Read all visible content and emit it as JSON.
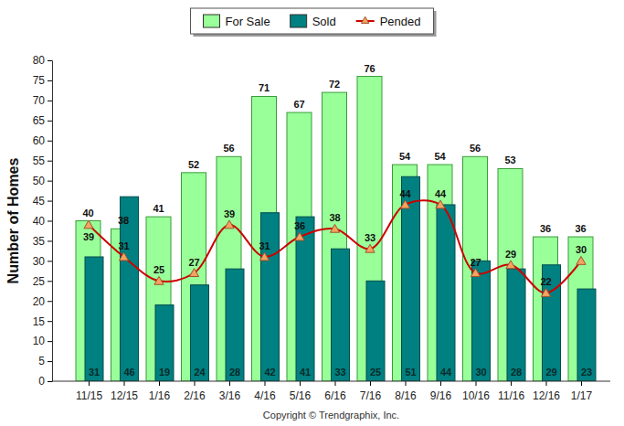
{
  "chart_data": {
    "type": "bar",
    "ylabel": "Number of Homes",
    "annotations": [
      "Copyright © Trendgraphix, Inc."
    ],
    "categories": [
      "11/15",
      "12/15",
      "1/16",
      "2/16",
      "3/16",
      "4/16",
      "5/16",
      "6/16",
      "7/16",
      "8/16",
      "9/16",
      "10/16",
      "11/16",
      "12/16",
      "1/17"
    ],
    "series": [
      {
        "name": "For Sale",
        "type": "bar",
        "color": "#99ff99",
        "values": [
          40,
          38,
          41,
          52,
          56,
          71,
          67,
          72,
          76,
          54,
          54,
          56,
          53,
          36,
          36
        ]
      },
      {
        "name": "Sold",
        "type": "bar",
        "color": "#008080",
        "values": [
          31,
          46,
          19,
          24,
          28,
          42,
          41,
          33,
          25,
          51,
          44,
          30,
          28,
          29,
          23
        ]
      },
      {
        "name": "Pended",
        "type": "line",
        "color": "#cc0000",
        "marker": "triangle",
        "line_style": "solid",
        "values": [
          39,
          31,
          25,
          27,
          39,
          31,
          36,
          38,
          33,
          44,
          44,
          27,
          29,
          22,
          30
        ]
      }
    ],
    "ylim": [
      0,
      80
    ],
    "yticks": [
      0,
      5,
      10,
      15,
      20,
      25,
      30,
      35,
      40,
      45,
      50,
      55,
      60,
      65,
      70,
      75,
      80
    ],
    "grid": false,
    "legend": "top",
    "data_labels": true
  }
}
